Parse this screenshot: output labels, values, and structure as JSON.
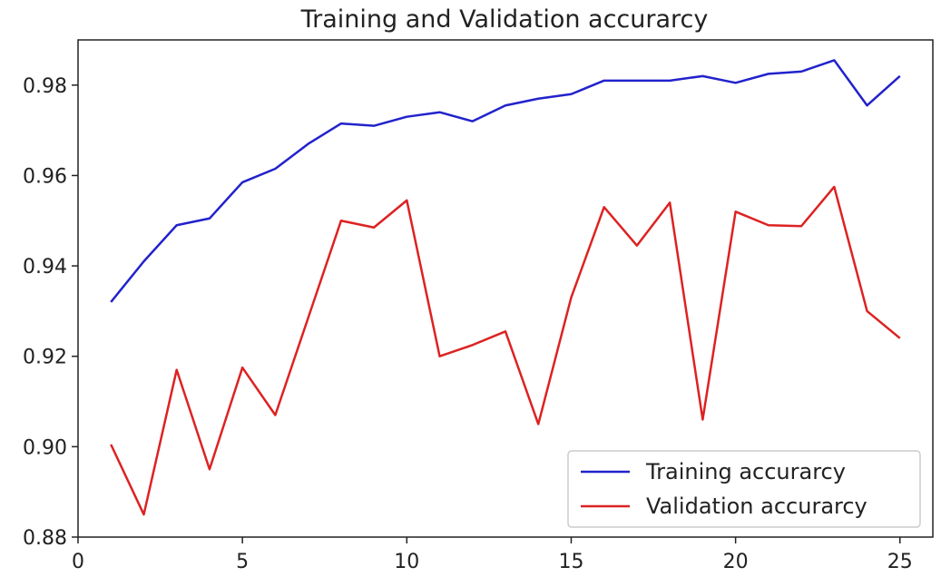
{
  "chart_data": {
    "type": "line",
    "title": "Training and Validation accurarcy",
    "xlim": [
      0,
      26
    ],
    "ylim": [
      0.88,
      0.99
    ],
    "xticks": [
      0,
      5,
      10,
      15,
      20,
      25
    ],
    "yticks": [
      0.88,
      0.9,
      0.92,
      0.94,
      0.96,
      0.98
    ],
    "xtick_labels": [
      "0",
      "5",
      "10",
      "15",
      "20",
      "25"
    ],
    "ytick_labels": [
      "0.88",
      "0.90",
      "0.92",
      "0.94",
      "0.96",
      "0.98"
    ],
    "x": [
      1,
      2,
      3,
      4,
      5,
      6,
      7,
      8,
      9,
      10,
      11,
      12,
      13,
      14,
      15,
      16,
      17,
      18,
      19,
      20,
      21,
      22,
      23,
      24,
      25
    ],
    "series": [
      {
        "name": "Training accurarcy",
        "color": "#2222cc",
        "values": [
          0.932,
          0.941,
          0.949,
          0.9505,
          0.9585,
          0.9615,
          0.967,
          0.9715,
          0.971,
          0.973,
          0.974,
          0.972,
          0.9755,
          0.977,
          0.978,
          0.981,
          0.981,
          0.981,
          0.982,
          0.9805,
          0.9825,
          0.983,
          0.9855,
          0.9755,
          0.982
        ]
      },
      {
        "name": "Validation accurarcy",
        "color": "#dd2222",
        "values": [
          0.9005,
          0.885,
          0.917,
          0.895,
          0.9175,
          0.907,
          0.9285,
          0.95,
          0.9485,
          0.9545,
          0.92,
          0.9225,
          0.9255,
          0.905,
          0.933,
          0.953,
          0.9445,
          0.954,
          0.906,
          0.952,
          0.949,
          0.9488,
          0.9575,
          0.93,
          0.924
        ]
      }
    ],
    "grid": false,
    "legend_position": "lower-right"
  }
}
